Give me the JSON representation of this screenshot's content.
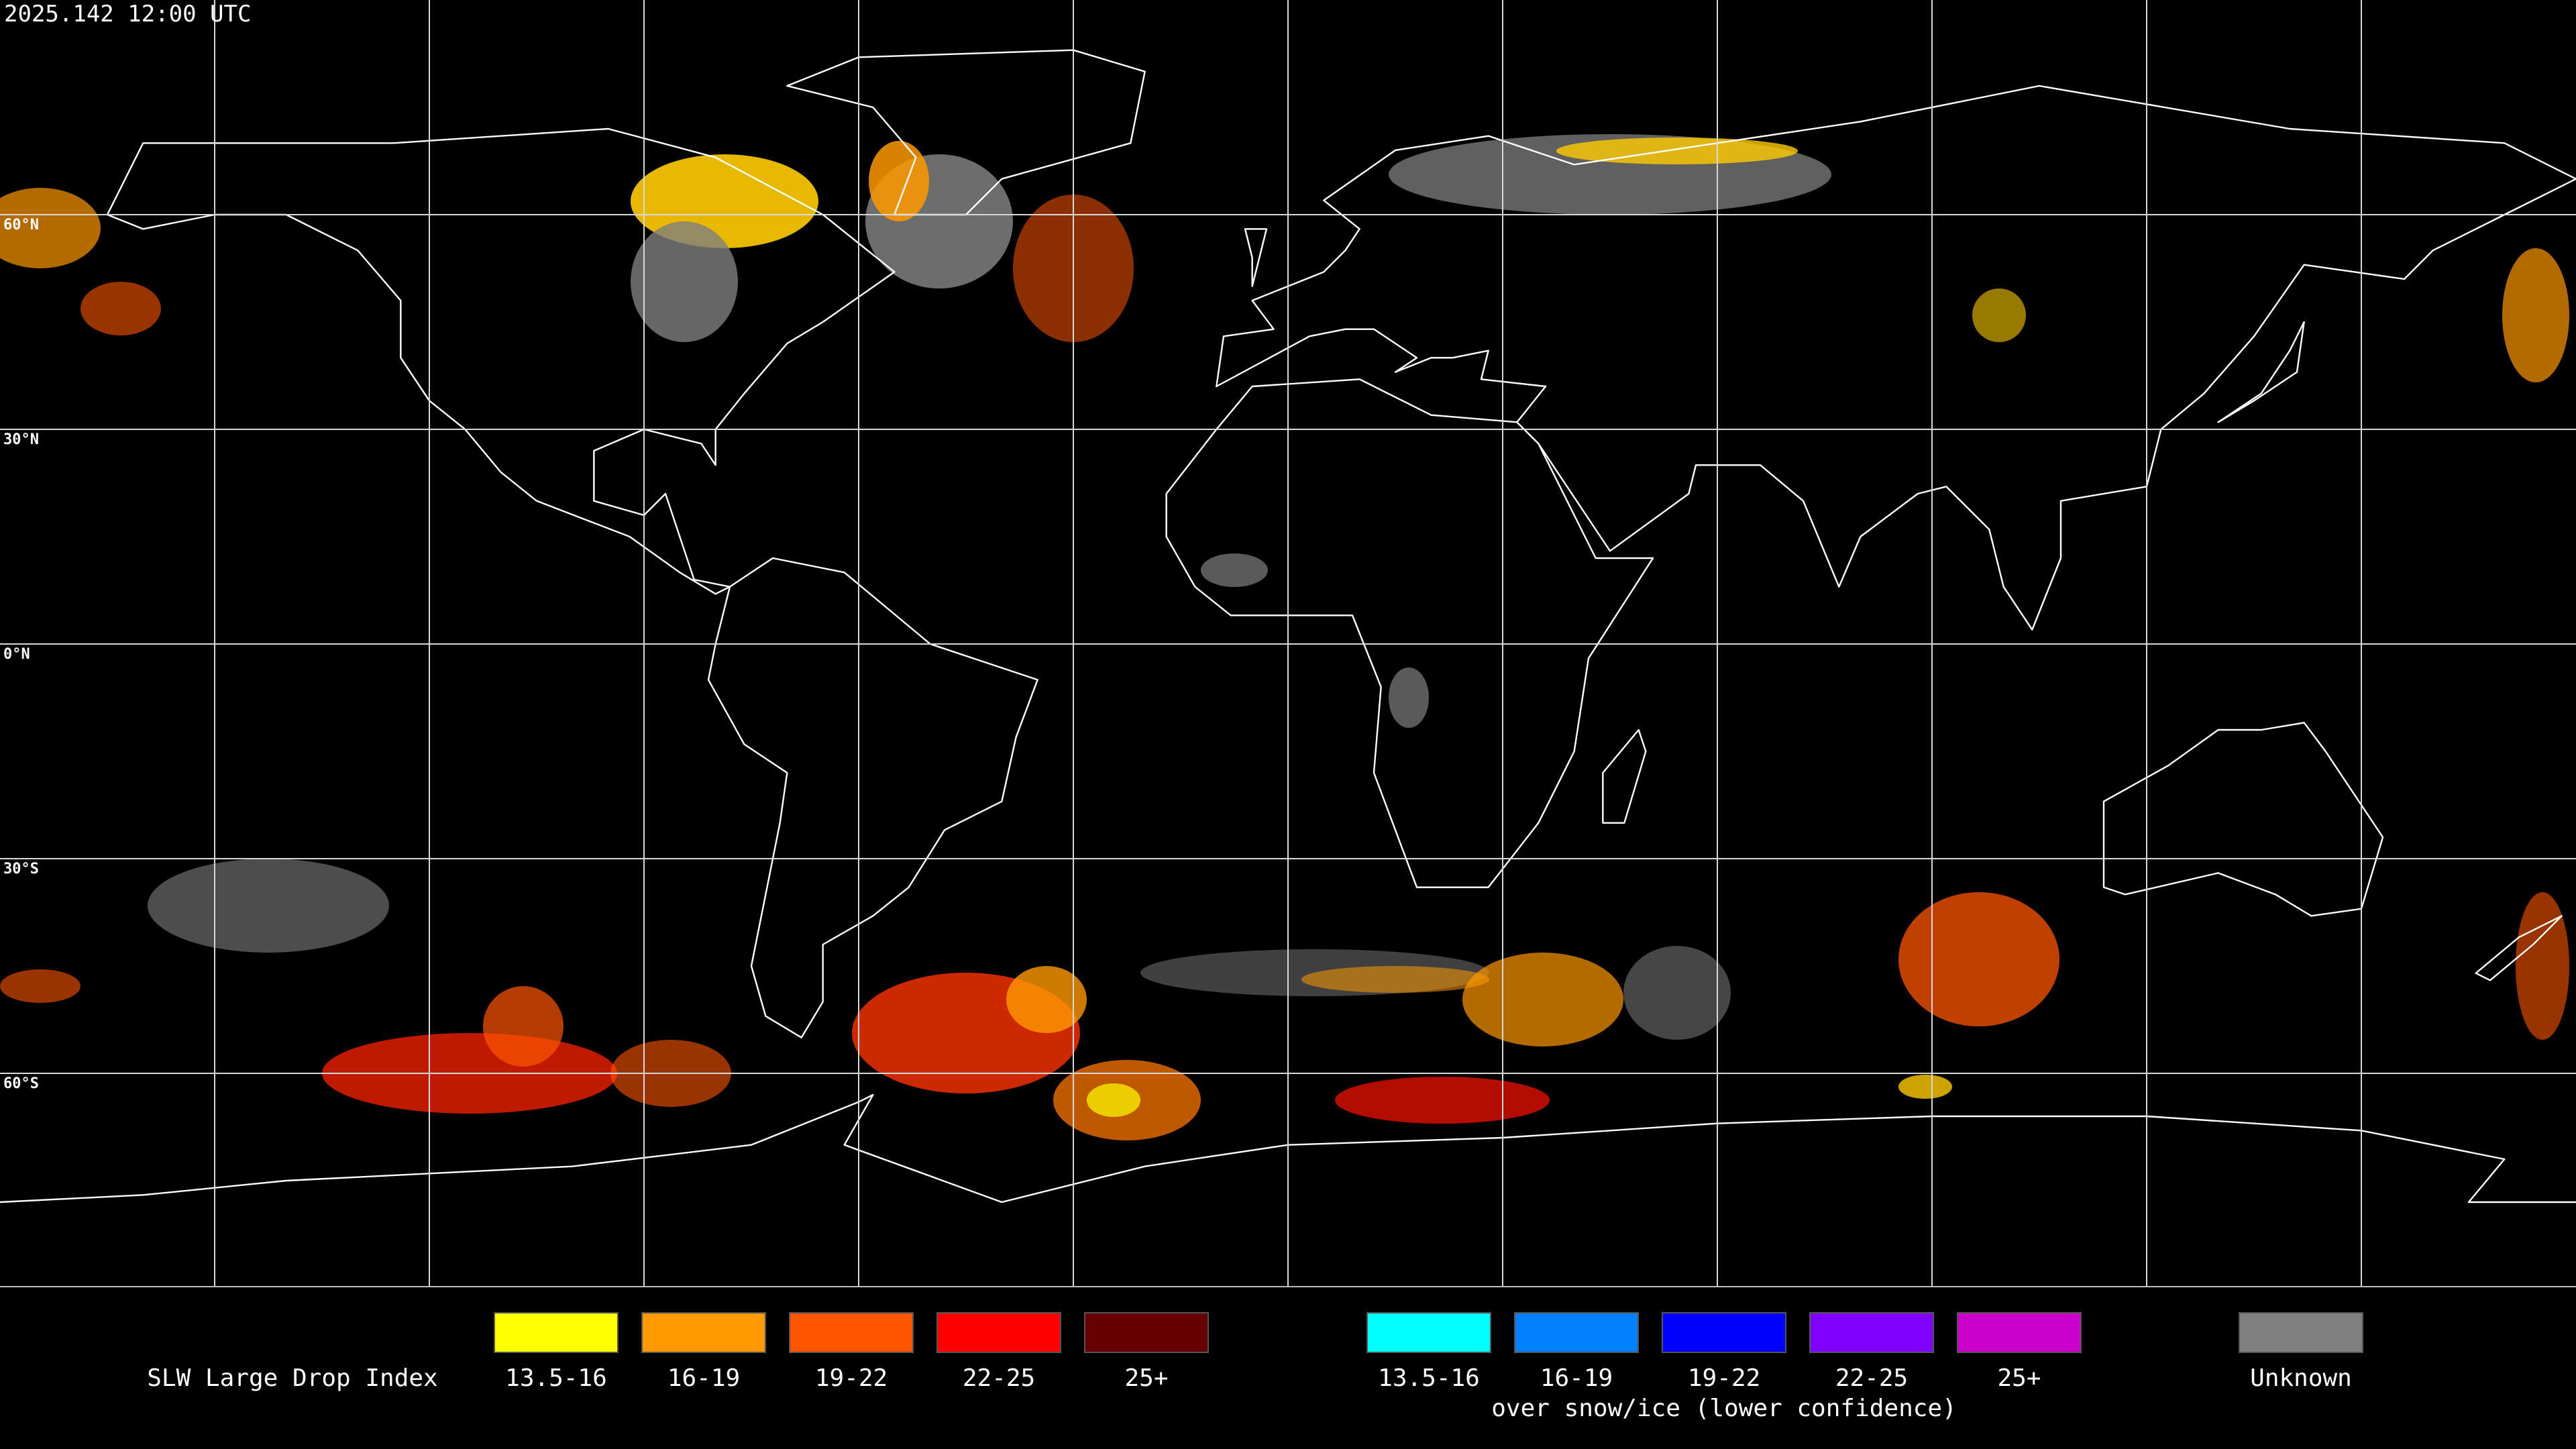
{
  "timestamp": "2025.142 12:00 UTC",
  "latitude_labels": [
    "60°N",
    "30°N",
    "0°N",
    "30°S",
    "60°S"
  ],
  "legend": {
    "title": "SLW Large Drop Index",
    "groups": [
      {
        "items": [
          {
            "label": "13.5-16",
            "color": "#ffff00"
          },
          {
            "label": "16-19",
            "color": "#ff9900"
          },
          {
            "label": "19-22",
            "color": "#ff5500"
          },
          {
            "label": "22-25",
            "color": "#ff0000"
          },
          {
            "label": "25+",
            "color": "#660000"
          }
        ]
      },
      {
        "caption": "over snow/ice (lower confidence)",
        "items": [
          {
            "label": "13.5-16",
            "color": "#00ffff"
          },
          {
            "label": "16-19",
            "color": "#0080ff"
          },
          {
            "label": "19-22",
            "color": "#0000ff"
          },
          {
            "label": "22-25",
            "color": "#7f00ff"
          },
          {
            "label": "25+",
            "color": "#cc00cc"
          }
        ]
      },
      {
        "items": [
          {
            "label": "Unknown",
            "color": "#808080"
          }
        ]
      }
    ]
  }
}
